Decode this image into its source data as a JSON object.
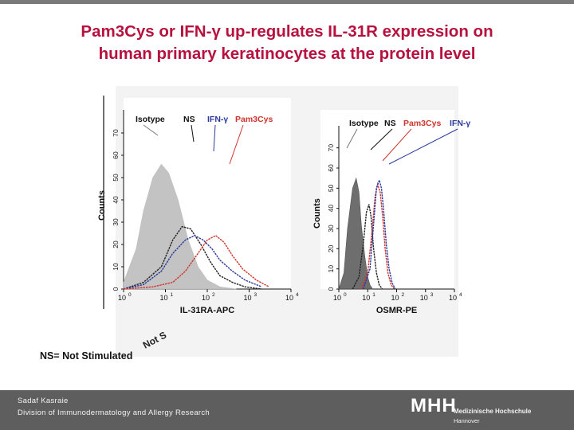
{
  "slide": {
    "title_line1": "Pam3Cys or IFN-γ up-regulates IL-31R expression on",
    "title_line2": "human primary keratinocytes at the protein level",
    "footnote": "NS= Not Stimulated",
    "rotated_fragment": "Not S",
    "author": "Sadaf Kasraie",
    "division": "Division of Immunodermatology and Allergy Research",
    "logo_mark": "MHH",
    "logo_name": "Medizinische Hochschule",
    "logo_city": "Hannover"
  },
  "colors": {
    "title": "#b7123f",
    "isotype": "#bdbdbd",
    "ns": "#222222",
    "ifn": "#2b3a9e",
    "pam": "#d0342c"
  },
  "chart_data": [
    {
      "type": "histogram-overlay",
      "title": "",
      "xlabel": "IL-31RA-APC",
      "ylabel": "Counts",
      "x_scale": "log",
      "xlim": [
        1,
        10000
      ],
      "ylim": [
        0,
        75
      ],
      "x_ticks": [
        "10",
        "10",
        "10",
        "10",
        "10"
      ],
      "x_tick_exponents": [
        "0",
        "1",
        "2",
        "3",
        "4"
      ],
      "y_ticks": [
        "0",
        "10",
        "20",
        "30",
        "40",
        "50",
        "60",
        "70"
      ],
      "legend": [
        "Isotype",
        "NS",
        "IFN-γ",
        "Pam3Cys"
      ],
      "series": [
        {
          "name": "Isotype",
          "style": "filled",
          "x": [
            1,
            2,
            3,
            5,
            8,
            12,
            20,
            35,
            60,
            100,
            200,
            500
          ],
          "values": [
            3,
            18,
            35,
            50,
            56,
            52,
            40,
            22,
            10,
            4,
            1,
            0
          ]
        },
        {
          "name": "NS",
          "style": "line",
          "x": [
            1,
            3,
            8,
            15,
            25,
            40,
            70,
            120,
            200,
            400,
            800,
            2000
          ],
          "values": [
            0,
            3,
            10,
            22,
            28,
            27,
            20,
            12,
            6,
            3,
            1,
            0
          ]
        },
        {
          "name": "IFN-γ",
          "style": "line",
          "x": [
            1,
            3,
            8,
            15,
            30,
            50,
            80,
            130,
            200,
            400,
            800,
            2000
          ],
          "values": [
            0,
            2,
            8,
            16,
            22,
            24,
            22,
            18,
            13,
            8,
            4,
            1
          ]
        },
        {
          "name": "Pam3Cys",
          "style": "line",
          "x": [
            1,
            5,
            15,
            30,
            60,
            100,
            160,
            250,
            400,
            700,
            1500,
            3000
          ],
          "values": [
            0,
            1,
            3,
            8,
            16,
            22,
            24,
            21,
            15,
            9,
            4,
            1
          ]
        }
      ]
    },
    {
      "type": "histogram-overlay",
      "title": "",
      "xlabel": "OSMR-PE",
      "ylabel": "Counts",
      "x_scale": "log",
      "xlim": [
        1,
        10000
      ],
      "ylim": [
        0,
        75
      ],
      "x_ticks": [
        "10",
        "10",
        "10",
        "10",
        "10"
      ],
      "x_tick_exponents": [
        "0",
        "1",
        "2",
        "3",
        "4"
      ],
      "y_ticks": [
        "0",
        "10",
        "20",
        "30",
        "40",
        "50",
        "60",
        "70"
      ],
      "legend": [
        "Isotype",
        "NS",
        "Pam3Cys",
        "IFN-γ"
      ],
      "series": [
        {
          "name": "Isotype",
          "style": "filled",
          "x": [
            1,
            1.5,
            2,
            3,
            4,
            5,
            6,
            8,
            10,
            12,
            15
          ],
          "values": [
            0,
            8,
            30,
            50,
            55,
            48,
            32,
            16,
            6,
            2,
            0
          ]
        },
        {
          "name": "NS",
          "style": "line",
          "x": [
            3,
            5,
            7,
            9,
            11,
            13,
            16,
            20,
            25,
            32
          ],
          "values": [
            0,
            6,
            22,
            38,
            42,
            36,
            20,
            8,
            2,
            0
          ]
        },
        {
          "name": "Pam3Cys",
          "style": "line",
          "x": [
            6,
            10,
            14,
            18,
            22,
            27,
            33,
            40,
            50,
            65,
            85
          ],
          "values": [
            0,
            8,
            28,
            46,
            52,
            48,
            36,
            20,
            8,
            2,
            0
          ]
        },
        {
          "name": "IFN-γ",
          "style": "line",
          "x": [
            7,
            12,
            16,
            20,
            25,
            30,
            36,
            44,
            55,
            70,
            90
          ],
          "values": [
            0,
            10,
            32,
            50,
            54,
            50,
            38,
            22,
            10,
            3,
            0
          ]
        }
      ]
    }
  ]
}
